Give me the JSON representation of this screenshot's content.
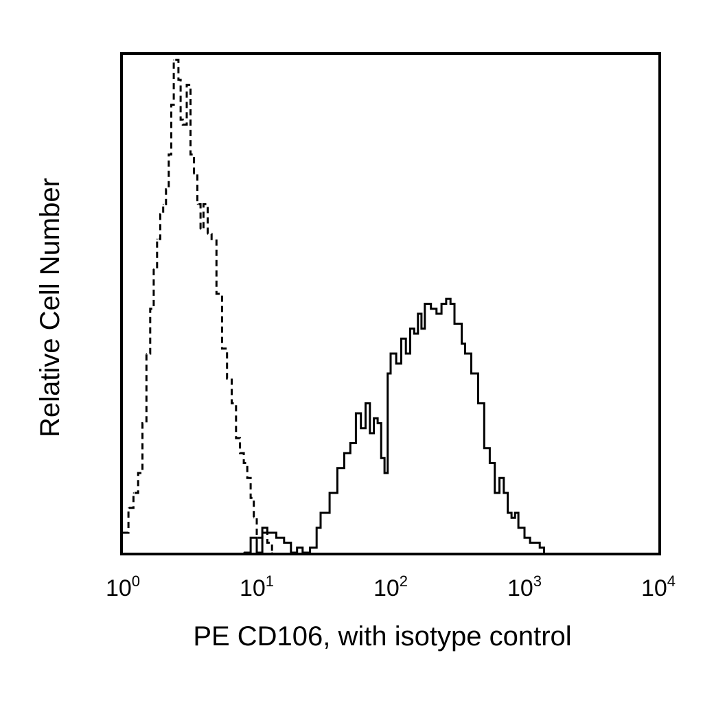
{
  "chart_data": {
    "type": "line",
    "title": "",
    "xlabel": "PE CD106, with isotype control",
    "ylabel": "Relative Cell Number",
    "x_scale": "log",
    "xlim": [
      1,
      10000
    ],
    "ylim": [
      0,
      100
    ],
    "y_ticks_shown": false,
    "grid": false,
    "legend": "none",
    "x_ticks": [
      {
        "base": "10",
        "exp": "0",
        "value": 1
      },
      {
        "base": "10",
        "exp": "1",
        "value": 10
      },
      {
        "base": "10",
        "exp": "2",
        "value": 100
      },
      {
        "base": "10",
        "exp": "3",
        "value": 1000
      },
      {
        "base": "10",
        "exp": "4",
        "value": 10000
      }
    ],
    "series": [
      {
        "style": "dashed",
        "color": "#000000",
        "points": [
          [
            1.0,
            4
          ],
          [
            1.1,
            9
          ],
          [
            1.2,
            12
          ],
          [
            1.3,
            16
          ],
          [
            1.4,
            26
          ],
          [
            1.5,
            40
          ],
          [
            1.6,
            49
          ],
          [
            1.7,
            57
          ],
          [
            1.8,
            63
          ],
          [
            1.9,
            68
          ],
          [
            2.0,
            70
          ],
          [
            2.1,
            73
          ],
          [
            2.2,
            80
          ],
          [
            2.3,
            90
          ],
          [
            2.4,
            99
          ],
          [
            2.5,
            99
          ],
          [
            2.6,
            95
          ],
          [
            2.7,
            87
          ],
          [
            2.8,
            86
          ],
          [
            3.0,
            94
          ],
          [
            3.2,
            80
          ],
          [
            3.4,
            76
          ],
          [
            3.6,
            70
          ],
          [
            3.8,
            65
          ],
          [
            4.0,
            70
          ],
          [
            4.3,
            64
          ],
          [
            4.6,
            63
          ],
          [
            5.0,
            52
          ],
          [
            5.5,
            41
          ],
          [
            6.0,
            35
          ],
          [
            6.5,
            30
          ],
          [
            7.0,
            23
          ],
          [
            7.5,
            20
          ],
          [
            8.0,
            18
          ],
          [
            8.5,
            15
          ],
          [
            9.0,
            11
          ],
          [
            9.5,
            7
          ],
          [
            10.0,
            3
          ],
          [
            11.0,
            4
          ],
          [
            12.0,
            2
          ],
          [
            13.0,
            0
          ]
        ]
      },
      {
        "style": "solid",
        "color": "#000000",
        "points": [
          [
            8.0,
            0
          ],
          [
            9.0,
            3
          ],
          [
            10.0,
            0
          ],
          [
            11.0,
            5
          ],
          [
            12.0,
            4
          ],
          [
            14.0,
            3
          ],
          [
            16.0,
            2
          ],
          [
            18.0,
            0
          ],
          [
            20.0,
            1
          ],
          [
            22.0,
            0
          ],
          [
            25.0,
            1
          ],
          [
            28.0,
            5
          ],
          [
            30.0,
            8
          ],
          [
            35.0,
            12
          ],
          [
            40.0,
            17
          ],
          [
            45.0,
            20
          ],
          [
            50.0,
            22
          ],
          [
            55.0,
            28
          ],
          [
            60.0,
            25
          ],
          [
            65.0,
            30
          ],
          [
            70.0,
            24
          ],
          [
            75.0,
            27
          ],
          [
            80.0,
            26
          ],
          [
            85.0,
            19
          ],
          [
            90.0,
            16
          ],
          [
            95.0,
            36
          ],
          [
            100.0,
            40
          ],
          [
            110.0,
            38
          ],
          [
            120.0,
            43
          ],
          [
            130.0,
            40
          ],
          [
            140.0,
            45
          ],
          [
            150.0,
            44
          ],
          [
            160.0,
            48
          ],
          [
            170.0,
            45
          ],
          [
            180.0,
            50
          ],
          [
            200.0,
            49
          ],
          [
            220.0,
            48
          ],
          [
            240.0,
            50
          ],
          [
            260.0,
            51
          ],
          [
            280.0,
            50
          ],
          [
            300.0,
            46
          ],
          [
            320.0,
            46
          ],
          [
            340.0,
            42
          ],
          [
            360.0,
            40
          ],
          [
            400.0,
            36
          ],
          [
            450.0,
            30
          ],
          [
            500.0,
            21
          ],
          [
            550.0,
            18
          ],
          [
            600.0,
            12
          ],
          [
            650.0,
            15
          ],
          [
            700.0,
            12
          ],
          [
            750.0,
            8
          ],
          [
            800.0,
            7
          ],
          [
            850.0,
            8
          ],
          [
            900.0,
            5
          ],
          [
            950.0,
            5
          ],
          [
            1000.0,
            3
          ],
          [
            1100.0,
            2
          ],
          [
            1200.0,
            2
          ],
          [
            1300.0,
            1
          ],
          [
            1400.0,
            0
          ]
        ]
      }
    ]
  }
}
